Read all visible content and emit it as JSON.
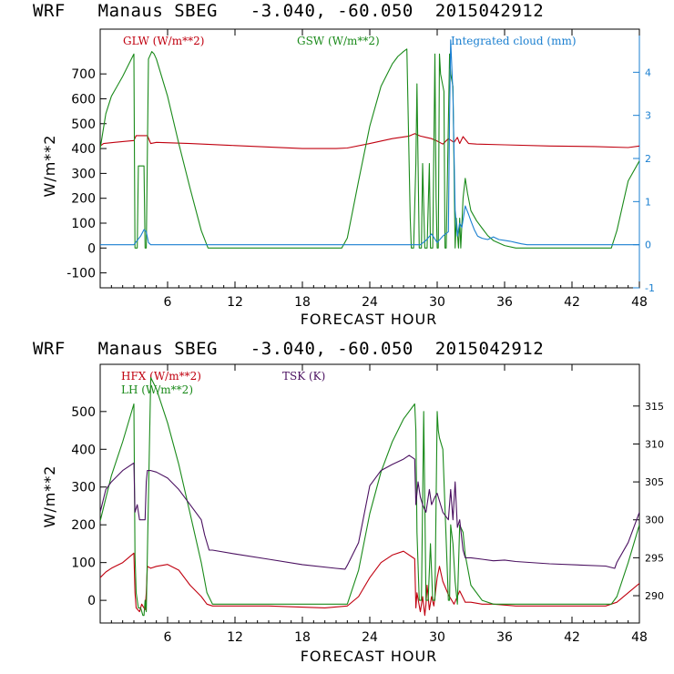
{
  "chart_data": [
    {
      "type": "line",
      "title": "WRF   Manaus SBEG   -3.040, -60.050  2015042912",
      "xlabel": "FORECAST HOUR",
      "ylabel": "W/m**2",
      "xlim": [
        0,
        48
      ],
      "ylim": [
        -160,
        880
      ],
      "y2lim": [
        -1,
        5
      ],
      "xticks": [
        "6",
        "12",
        "18",
        "24",
        "30",
        "36",
        "42",
        "48"
      ],
      "yticks": [
        "-100",
        "0",
        "100",
        "200",
        "300",
        "400",
        "500",
        "600",
        "700"
      ],
      "y2ticks": [
        "-1",
        "0",
        "1",
        "2",
        "3",
        "4"
      ],
      "y2color": "#1a7fd0",
      "series": [
        {
          "name": "GLW (W/m**2)",
          "color": "#c0000f",
          "axis": "left",
          "x": [
            0,
            0.3,
            2,
            3,
            3.2,
            4.2,
            4.5,
            5,
            8,
            12,
            18,
            21,
            22,
            24,
            26,
            27.5,
            28,
            28.5,
            29,
            29.5,
            30,
            30.5,
            31,
            31.5,
            31.8,
            32,
            32.3,
            32.8,
            33.5,
            36,
            40,
            44,
            47,
            48
          ],
          "y": [
            410,
            420,
            428,
            432,
            452,
            452,
            420,
            425,
            420,
            412,
            400,
            400,
            402,
            420,
            440,
            450,
            460,
            450,
            445,
            440,
            430,
            418,
            440,
            425,
            445,
            420,
            448,
            420,
            418,
            415,
            410,
            408,
            404,
            410
          ]
        },
        {
          "name": "GSW (W/m**2)",
          "color": "#1a8a1a",
          "axis": "left",
          "x": [
            0,
            0.5,
            1,
            2,
            3,
            3.05,
            3.1,
            3.3,
            3.4,
            3.9,
            4,
            4.1,
            4.3,
            4.6,
            4.8,
            5,
            6,
            7,
            8,
            9,
            9.6,
            10,
            21.5,
            22,
            23,
            24,
            25,
            26,
            26.5,
            27,
            27.3,
            27.5,
            27.6,
            27.7,
            27.9,
            28.1,
            28.2,
            28.4,
            28.6,
            28.7,
            28.9,
            29.1,
            29.3,
            29.4,
            29.6,
            29.8,
            29.9,
            30,
            30.1,
            30.2,
            30.3,
            30.6,
            30.7,
            30.8,
            31.1,
            31.2,
            31.4,
            31.6,
            31.7,
            31.9,
            32,
            32.1,
            32.3,
            32.5,
            32.7,
            33,
            33.5,
            34,
            34.5,
            35,
            36,
            37,
            38,
            45.5,
            46,
            46.5,
            47,
            48
          ],
          "y": [
            400,
            540,
            610,
            690,
            780,
            380,
            0,
            0,
            330,
            330,
            0,
            0,
            760,
            790,
            780,
            760,
            610,
            420,
            240,
            70,
            0,
            0,
            0,
            40,
            270,
            490,
            650,
            740,
            770,
            790,
            800,
            340,
            120,
            0,
            0,
            340,
            660,
            0,
            0,
            340,
            0,
            0,
            340,
            0,
            0,
            780,
            200,
            0,
            0,
            780,
            700,
            630,
            0,
            0,
            780,
            700,
            650,
            0,
            120,
            0,
            120,
            0,
            200,
            280,
            220,
            150,
            110,
            80,
            50,
            30,
            10,
            0,
            0,
            0,
            70,
            170,
            270,
            350
          ]
        },
        {
          "name": "Integrated cloud (mm)",
          "color": "#1a7fd0",
          "axis": "right",
          "x": [
            0,
            3,
            3.3,
            3.6,
            3.9,
            4.1,
            4.3,
            4.5,
            4.8,
            28.5,
            29,
            29.5,
            30,
            30.5,
            31,
            31.1,
            31.2,
            31.4,
            31.6,
            31.8,
            32,
            32.2,
            32.5,
            32.8,
            33,
            33.3,
            33.6,
            34,
            34.5,
            35,
            35.5,
            36,
            36.5,
            37,
            37.5,
            38,
            48
          ],
          "y": [
            0,
            0,
            0.1,
            0.2,
            0.35,
            0.3,
            0.05,
            0,
            0,
            0,
            0.1,
            0.25,
            0.05,
            0.2,
            0.3,
            3,
            4.75,
            3.5,
            0.8,
            0.2,
            0.5,
            0.4,
            0.9,
            0.7,
            0.55,
            0.35,
            0.2,
            0.15,
            0.12,
            0.18,
            0.12,
            0.1,
            0.08,
            0.05,
            0.02,
            0,
            0
          ]
        }
      ]
    },
    {
      "type": "line",
      "title": "WRF   Manaus SBEG   -3.040, -60.050  2015042912",
      "xlabel": "FORECAST HOUR",
      "ylabel": "W/m**2",
      "xlim": [
        0,
        48
      ],
      "ylim": [
        -60,
        625
      ],
      "y2lim": [
        286.4,
        320.5
      ],
      "xticks": [
        "6",
        "12",
        "18",
        "24",
        "30",
        "36",
        "42",
        "48"
      ],
      "yticks": [
        "0",
        "100",
        "200",
        "300",
        "400",
        "500"
      ],
      "y2ticks": [
        "290",
        "295",
        "300",
        "305",
        "310",
        "315"
      ],
      "y2color": "#000000",
      "series": [
        {
          "name": "HFX (W/m**2)",
          "color": "#c0000f",
          "axis": "left",
          "x": [
            0,
            0.5,
            1,
            2,
            3,
            3.1,
            3.2,
            3.5,
            3.7,
            4,
            4.1,
            4.2,
            4.5,
            5,
            6,
            7,
            8,
            9,
            9.5,
            10,
            15,
            20,
            22,
            23,
            24,
            25,
            26,
            27,
            28,
            28.1,
            28.2,
            28.5,
            28.7,
            28.9,
            29,
            29.1,
            29.3,
            29.5,
            29.7,
            30,
            30.2,
            30.5,
            31,
            31.5,
            32,
            32.5,
            33,
            34,
            35,
            37,
            38,
            45,
            46,
            47,
            48
          ],
          "y": [
            60,
            75,
            85,
            100,
            125,
            20,
            -20,
            -30,
            -10,
            -25,
            20,
            90,
            85,
            90,
            95,
            80,
            40,
            10,
            -10,
            -15,
            -15,
            -20,
            -15,
            10,
            60,
            100,
            120,
            130,
            110,
            -20,
            20,
            -30,
            10,
            -40,
            -10,
            40,
            -25,
            10,
            -15,
            60,
            90,
            50,
            15,
            -10,
            25,
            -5,
            -5,
            -10,
            -10,
            -15,
            -15,
            -15,
            -5,
            20,
            45
          ]
        },
        {
          "name": "LH  (W/m**2)",
          "color": "#1a8a1a",
          "axis": "left",
          "x": [
            0,
            1,
            2,
            3,
            3.1,
            3.2,
            3.4,
            3.6,
            3.8,
            3.9,
            4,
            4.1,
            4.5,
            5,
            6,
            7,
            8,
            9,
            9.5,
            10,
            15,
            20,
            22,
            23,
            24,
            25,
            26,
            27,
            28,
            28.1,
            28.2,
            28.4,
            28.6,
            28.8,
            29,
            29.2,
            29.4,
            29.6,
            29.8,
            30,
            30.1,
            30.2,
            30.5,
            31,
            31.1,
            31.2,
            31.4,
            31.6,
            31.8,
            32,
            32.3,
            32.5,
            33,
            34,
            35,
            37,
            40,
            45.5,
            46,
            47,
            48
          ],
          "y": [
            210,
            330,
            420,
            520,
            120,
            20,
            -20,
            -20,
            -40,
            -40,
            0,
            -30,
            590,
            560,
            470,
            360,
            230,
            100,
            20,
            -10,
            -10,
            -10,
            -10,
            80,
            230,
            340,
            420,
            480,
            520,
            450,
            180,
            0,
            0,
            500,
            0,
            0,
            150,
            0,
            0,
            500,
            450,
            430,
            400,
            0,
            0,
            200,
            150,
            50,
            -10,
            200,
            180,
            120,
            40,
            0,
            -10,
            -10,
            -10,
            -10,
            10,
            100,
            200
          ]
        },
        {
          "name": "TSK (K)",
          "color": "#4a1060",
          "axis": "right",
          "x": [
            0,
            0.5,
            1,
            2,
            3,
            3.1,
            3.3,
            3.5,
            4,
            4.1,
            4.2,
            4.5,
            5,
            6,
            7,
            8,
            9,
            9.3,
            9.7,
            10,
            12,
            15,
            18,
            21,
            21.8,
            22,
            23,
            24,
            25,
            26,
            27,
            27.5,
            28,
            28.1,
            28.3,
            28.5,
            28.7,
            29,
            29.3,
            29.5,
            29.8,
            30,
            30.5,
            31,
            31.2,
            31.4,
            31.6,
            31.8,
            32,
            32.3,
            32.5,
            33,
            34,
            35,
            36,
            37,
            40,
            45,
            45.8,
            46,
            47,
            48
          ],
          "y": [
            301,
            304,
            305,
            306.5,
            307.5,
            301,
            302,
            300,
            300,
            305,
            306.5,
            306.5,
            306.3,
            305.5,
            304,
            302,
            300,
            298,
            296,
            296,
            295.5,
            294.8,
            294.1,
            293.6,
            293.5,
            294,
            297,
            304.5,
            306.5,
            307.3,
            308,
            308.5,
            308,
            302,
            305,
            303,
            302,
            301,
            304,
            302,
            303,
            303.5,
            301,
            300,
            304,
            300,
            305,
            299,
            300,
            296,
            295,
            295,
            294.8,
            294.6,
            294.7,
            294.5,
            294.2,
            293.9,
            293.6,
            294.4,
            297,
            301
          ]
        }
      ]
    }
  ]
}
